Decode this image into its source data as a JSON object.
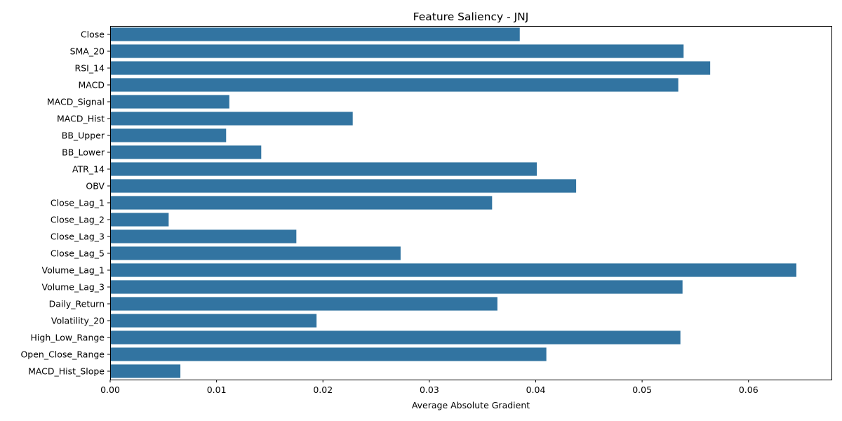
{
  "chart_data": {
    "type": "bar",
    "orientation": "horizontal",
    "title": "Feature Saliency - JNJ",
    "xlabel": "Average Absolute Gradient",
    "ylabel": "",
    "xlim": [
      0,
      0.0678
    ],
    "xticks": [
      0.0,
      0.01,
      0.02,
      0.03,
      0.04,
      0.05,
      0.06
    ],
    "xtick_labels": [
      "0.00",
      "0.01",
      "0.02",
      "0.03",
      "0.04",
      "0.05",
      "0.06"
    ],
    "grid": false,
    "bar_color": "#3274a1",
    "categories": [
      "Close",
      "SMA_20",
      "RSI_14",
      "MACD",
      "MACD_Signal",
      "MACD_Hist",
      "BB_Upper",
      "BB_Lower",
      "ATR_14",
      "OBV",
      "Close_Lag_1",
      "Close_Lag_2",
      "Close_Lag_3",
      "Close_Lag_5",
      "Volume_Lag_1",
      "Volume_Lag_3",
      "Daily_Return",
      "Volatility_20",
      "High_Low_Range",
      "Open_Close_Range",
      "MACD_Hist_Slope"
    ],
    "values": [
      0.0385,
      0.0539,
      0.0564,
      0.0534,
      0.0112,
      0.0228,
      0.0109,
      0.0142,
      0.0401,
      0.0438,
      0.0359,
      0.0055,
      0.0175,
      0.0273,
      0.0645,
      0.0538,
      0.0364,
      0.0194,
      0.0536,
      0.041,
      0.0066
    ]
  }
}
